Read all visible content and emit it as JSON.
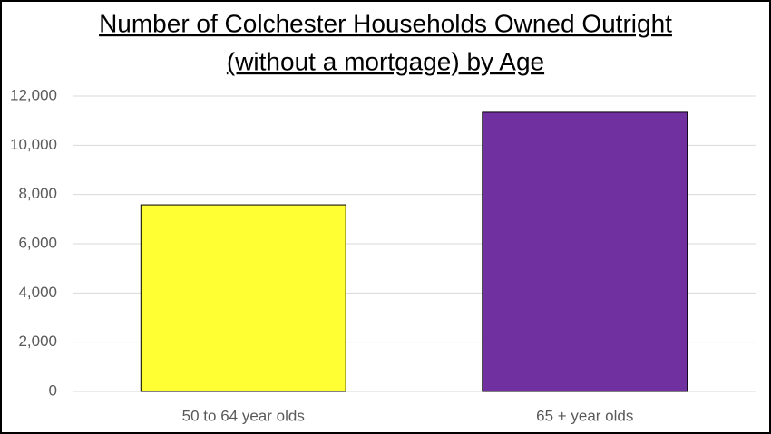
{
  "chart_data": {
    "type": "bar",
    "title": [
      "Number of Colchester Households Owned Outright",
      "(without a mortgage) by Age"
    ],
    "categories": [
      "50 to 64 year olds",
      "65 + year olds"
    ],
    "values": [
      7580,
      11340
    ],
    "colors": [
      "#ffff33",
      "#7030a0"
    ],
    "ylim": [
      0,
      12000
    ],
    "yticks": [
      0,
      {
        "value": 2000,
        "label": "2,000"
      },
      {
        "value": 4000,
        "label": "4,000"
      },
      {
        "value": 6000,
        "label": "6,000"
      },
      {
        "value": 8000,
        "label": "8,000"
      },
      {
        "value": 10000,
        "label": "10,000"
      },
      {
        "value": 12000,
        "label": "12,000"
      }
    ],
    "grid": true
  }
}
